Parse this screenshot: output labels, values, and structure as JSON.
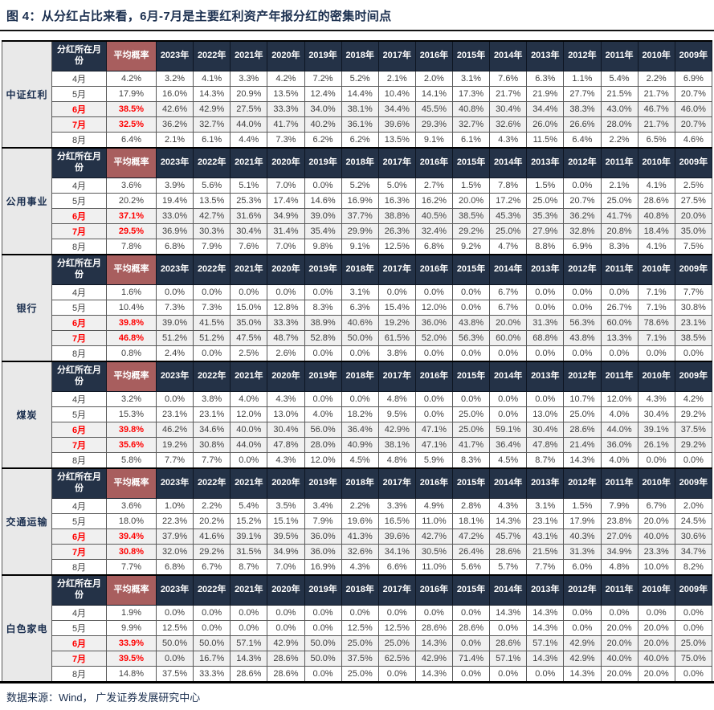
{
  "title": "图 4：从分红占比来看，6月-7月是主要红利资产年报分红的密集时间点",
  "footer": {
    "source_label": "数据来源：Wind， 广发证券发展研究中心"
  },
  "colors": {
    "header_bg": "#243247",
    "avg_header_bg": "#a85e5e",
    "highlight_text": "#ff0000",
    "section_label_bg": "#e9e9e9",
    "highlight_row_bg": "#f0f0f0",
    "title_color": "#1b2f4f"
  },
  "chart_data": {
    "type": "table",
    "title": "图 4：从分红占比来看，6月-7月是主要红利资产年报分红的密集时间点",
    "col_headers": [
      "分红所在月份",
      "平均概率",
      "2023年",
      "2022年",
      "2021年",
      "2020年",
      "2019年",
      "2018年",
      "2017年",
      "2016年",
      "2015年",
      "2014年",
      "2013年",
      "2012年",
      "2011年",
      "2010年",
      "2009年"
    ],
    "sections": [
      {
        "name": "中证红利",
        "rows": [
          {
            "month": "4月",
            "avg": "4.2%",
            "highlight": false,
            "values": [
              "3.2%",
              "4.1%",
              "3.3%",
              "4.2%",
              "7.2%",
              "5.2%",
              "2.1%",
              "2.0%",
              "3.1%",
              "7.6%",
              "6.3%",
              "1.1%",
              "5.4%",
              "2.2%",
              "6.9%"
            ]
          },
          {
            "month": "5月",
            "avg": "17.9%",
            "highlight": false,
            "values": [
              "16.0%",
              "14.3%",
              "20.9%",
              "13.5%",
              "12.4%",
              "14.4%",
              "10.4%",
              "14.1%",
              "17.3%",
              "21.7%",
              "21.9%",
              "27.7%",
              "21.5%",
              "21.7%",
              "20.7%"
            ]
          },
          {
            "month": "6月",
            "avg": "38.5%",
            "highlight": true,
            "values": [
              "42.6%",
              "42.9%",
              "27.5%",
              "33.3%",
              "34.0%",
              "38.1%",
              "34.4%",
              "45.5%",
              "40.8%",
              "30.4%",
              "34.4%",
              "38.3%",
              "43.0%",
              "46.7%",
              "46.0%"
            ]
          },
          {
            "month": "7月",
            "avg": "32.5%",
            "highlight": true,
            "values": [
              "36.2%",
              "32.7%",
              "44.0%",
              "41.7%",
              "40.2%",
              "36.1%",
              "39.6%",
              "29.3%",
              "32.7%",
              "32.6%",
              "26.0%",
              "26.6%",
              "28.0%",
              "21.7%",
              "20.7%"
            ]
          },
          {
            "month": "8月",
            "avg": "6.4%",
            "highlight": false,
            "values": [
              "2.1%",
              "6.1%",
              "4.4%",
              "7.3%",
              "6.2%",
              "6.2%",
              "13.5%",
              "9.1%",
              "6.1%",
              "4.3%",
              "11.5%",
              "6.4%",
              "2.2%",
              "6.5%",
              "4.6%"
            ]
          }
        ]
      },
      {
        "name": "公用事业",
        "rows": [
          {
            "month": "4月",
            "avg": "3.6%",
            "highlight": false,
            "values": [
              "3.9%",
              "5.6%",
              "5.1%",
              "7.0%",
              "0.0%",
              "5.2%",
              "5.0%",
              "2.7%",
              "1.5%",
              "7.8%",
              "1.5%",
              "0.0%",
              "2.1%",
              "4.1%",
              "2.5%"
            ]
          },
          {
            "month": "5月",
            "avg": "20.2%",
            "highlight": false,
            "values": [
              "19.4%",
              "13.5%",
              "25.3%",
              "17.4%",
              "14.6%",
              "16.9%",
              "16.3%",
              "16.2%",
              "20.0%",
              "17.2%",
              "25.0%",
              "20.7%",
              "25.0%",
              "28.6%",
              "27.5%"
            ]
          },
          {
            "month": "6月",
            "avg": "37.1%",
            "highlight": true,
            "values": [
              "33.0%",
              "42.7%",
              "31.6%",
              "34.9%",
              "39.0%",
              "37.7%",
              "38.8%",
              "40.5%",
              "38.5%",
              "45.3%",
              "35.3%",
              "36.2%",
              "41.7%",
              "40.8%",
              "20.0%"
            ]
          },
          {
            "month": "7月",
            "avg": "29.5%",
            "highlight": true,
            "values": [
              "36.9%",
              "30.3%",
              "30.4%",
              "31.4%",
              "35.4%",
              "29.9%",
              "26.3%",
              "32.4%",
              "29.2%",
              "25.0%",
              "27.9%",
              "32.8%",
              "20.8%",
              "18.4%",
              "35.0%"
            ]
          },
          {
            "month": "8月",
            "avg": "7.8%",
            "highlight": false,
            "values": [
              "6.8%",
              "7.9%",
              "7.6%",
              "7.0%",
              "9.8%",
              "9.1%",
              "12.5%",
              "6.8%",
              "9.2%",
              "4.7%",
              "8.8%",
              "6.9%",
              "8.3%",
              "4.1%",
              "7.5%"
            ]
          }
        ]
      },
      {
        "name": "银行",
        "rows": [
          {
            "month": "4月",
            "avg": "1.6%",
            "highlight": false,
            "values": [
              "0.0%",
              "0.0%",
              "0.0%",
              "0.0%",
              "0.0%",
              "3.1%",
              "0.0%",
              "0.0%",
              "0.0%",
              "6.7%",
              "0.0%",
              "0.0%",
              "0.0%",
              "7.1%",
              "7.7%"
            ]
          },
          {
            "month": "5月",
            "avg": "10.4%",
            "highlight": false,
            "values": [
              "7.3%",
              "7.3%",
              "15.0%",
              "12.8%",
              "8.3%",
              "6.3%",
              "15.4%",
              "12.0%",
              "0.0%",
              "6.7%",
              "0.0%",
              "0.0%",
              "26.7%",
              "7.1%",
              "30.8%"
            ]
          },
          {
            "month": "6月",
            "avg": "39.8%",
            "highlight": true,
            "values": [
              "39.0%",
              "41.5%",
              "35.0%",
              "33.3%",
              "38.9%",
              "40.6%",
              "19.2%",
              "36.0%",
              "43.8%",
              "20.0%",
              "31.3%",
              "56.3%",
              "60.0%",
              "78.6%",
              "23.1%"
            ]
          },
          {
            "month": "7月",
            "avg": "46.8%",
            "highlight": true,
            "values": [
              "51.2%",
              "51.2%",
              "47.5%",
              "48.7%",
              "52.8%",
              "50.0%",
              "61.5%",
              "52.0%",
              "56.3%",
              "60.0%",
              "68.8%",
              "43.8%",
              "13.3%",
              "7.1%",
              "38.5%"
            ]
          },
          {
            "month": "8月",
            "avg": "0.8%",
            "highlight": false,
            "values": [
              "2.4%",
              "0.0%",
              "2.5%",
              "2.6%",
              "0.0%",
              "0.0%",
              "3.8%",
              "0.0%",
              "0.0%",
              "0.0%",
              "0.0%",
              "0.0%",
              "0.0%",
              "0.0%",
              "0.0%"
            ]
          }
        ]
      },
      {
        "name": "煤炭",
        "rows": [
          {
            "month": "4月",
            "avg": "3.2%",
            "highlight": false,
            "values": [
              "0.0%",
              "3.8%",
              "4.0%",
              "4.3%",
              "0.0%",
              "0.0%",
              "4.8%",
              "0.0%",
              "0.0%",
              "0.0%",
              "0.0%",
              "10.7%",
              "12.0%",
              "4.3%",
              "4.2%"
            ]
          },
          {
            "month": "5月",
            "avg": "15.3%",
            "highlight": false,
            "values": [
              "23.1%",
              "23.1%",
              "12.0%",
              "13.0%",
              "4.0%",
              "18.2%",
              "9.5%",
              "0.0%",
              "25.0%",
              "0.0%",
              "13.0%",
              "25.0%",
              "4.0%",
              "30.4%",
              "29.2%"
            ]
          },
          {
            "month": "6月",
            "avg": "39.8%",
            "highlight": true,
            "values": [
              "46.2%",
              "34.6%",
              "40.0%",
              "30.4%",
              "56.0%",
              "36.4%",
              "42.9%",
              "47.1%",
              "25.0%",
              "59.1%",
              "30.4%",
              "28.6%",
              "44.0%",
              "39.1%",
              "37.5%"
            ]
          },
          {
            "month": "7月",
            "avg": "35.6%",
            "highlight": true,
            "values": [
              "19.2%",
              "30.8%",
              "44.0%",
              "47.8%",
              "28.0%",
              "40.9%",
              "38.1%",
              "47.1%",
              "41.7%",
              "36.4%",
              "47.8%",
              "21.4%",
              "36.0%",
              "26.1%",
              "29.2%"
            ]
          },
          {
            "month": "8月",
            "avg": "5.8%",
            "highlight": false,
            "values": [
              "7.7%",
              "7.7%",
              "0.0%",
              "4.3%",
              "12.0%",
              "4.5%",
              "4.8%",
              "5.9%",
              "8.3%",
              "4.5%",
              "8.7%",
              "14.3%",
              "4.0%",
              "0.0%",
              "0.0%"
            ]
          }
        ]
      },
      {
        "name": "交通运输",
        "rows": [
          {
            "month": "4月",
            "avg": "3.6%",
            "highlight": false,
            "values": [
              "1.0%",
              "2.2%",
              "5.4%",
              "3.5%",
              "3.4%",
              "2.2%",
              "3.3%",
              "4.9%",
              "2.8%",
              "4.3%",
              "3.1%",
              "1.5%",
              "7.9%",
              "6.7%",
              "2.0%"
            ]
          },
          {
            "month": "5月",
            "avg": "18.0%",
            "highlight": false,
            "values": [
              "22.3%",
              "20.2%",
              "15.2%",
              "15.1%",
              "7.9%",
              "19.6%",
              "16.5%",
              "11.0%",
              "18.1%",
              "14.3%",
              "23.1%",
              "17.9%",
              "23.8%",
              "20.0%",
              "24.5%"
            ]
          },
          {
            "month": "6月",
            "avg": "39.4%",
            "highlight": true,
            "values": [
              "37.9%",
              "41.6%",
              "39.1%",
              "39.5%",
              "36.0%",
              "41.3%",
              "39.6%",
              "42.7%",
              "47.2%",
              "45.7%",
              "43.1%",
              "40.3%",
              "27.0%",
              "40.0%",
              "30.6%"
            ]
          },
          {
            "month": "7月",
            "avg": "30.8%",
            "highlight": true,
            "values": [
              "32.0%",
              "29.2%",
              "31.5%",
              "34.9%",
              "36.0%",
              "32.6%",
              "34.1%",
              "30.5%",
              "26.4%",
              "28.6%",
              "21.5%",
              "31.3%",
              "34.9%",
              "23.3%",
              "34.7%"
            ]
          },
          {
            "month": "8月",
            "avg": "7.7%",
            "highlight": false,
            "values": [
              "6.8%",
              "6.7%",
              "8.7%",
              "7.0%",
              "16.9%",
              "4.3%",
              "6.6%",
              "11.0%",
              "5.6%",
              "5.7%",
              "7.7%",
              "6.0%",
              "4.8%",
              "10.0%",
              "8.2%"
            ]
          }
        ]
      },
      {
        "name": "白色家电",
        "rows": [
          {
            "month": "4月",
            "avg": "1.9%",
            "highlight": false,
            "values": [
              "0.0%",
              "0.0%",
              "0.0%",
              "0.0%",
              "0.0%",
              "0.0%",
              "0.0%",
              "0.0%",
              "0.0%",
              "14.3%",
              "14.3%",
              "0.0%",
              "0.0%",
              "0.0%",
              "0.0%"
            ]
          },
          {
            "month": "5月",
            "avg": "9.9%",
            "highlight": false,
            "values": [
              "12.5%",
              "0.0%",
              "0.0%",
              "0.0%",
              "0.0%",
              "12.5%",
              "12.5%",
              "28.6%",
              "28.6%",
              "0.0%",
              "14.3%",
              "0.0%",
              "20.0%",
              "20.0%",
              "0.0%"
            ]
          },
          {
            "month": "6月",
            "avg": "33.9%",
            "highlight": true,
            "values": [
              "50.0%",
              "50.0%",
              "57.1%",
              "42.9%",
              "50.0%",
              "25.0%",
              "25.0%",
              "14.3%",
              "0.0%",
              "28.6%",
              "57.1%",
              "42.9%",
              "20.0%",
              "20.0%",
              "25.0%"
            ]
          },
          {
            "month": "7月",
            "avg": "39.5%",
            "highlight": true,
            "values": [
              "0.0%",
              "16.7%",
              "14.3%",
              "28.6%",
              "50.0%",
              "37.5%",
              "62.5%",
              "42.9%",
              "71.4%",
              "57.1%",
              "14.3%",
              "42.9%",
              "40.0%",
              "40.0%",
              "75.0%"
            ]
          },
          {
            "month": "8月",
            "avg": "14.8%",
            "highlight": false,
            "values": [
              "37.5%",
              "33.3%",
              "28.6%",
              "28.6%",
              "0.0%",
              "25.0%",
              "0.0%",
              "14.3%",
              "0.0%",
              "0.0%",
              "0.0%",
              "14.3%",
              "20.0%",
              "20.0%",
              "0.0%"
            ]
          }
        ]
      }
    ]
  }
}
